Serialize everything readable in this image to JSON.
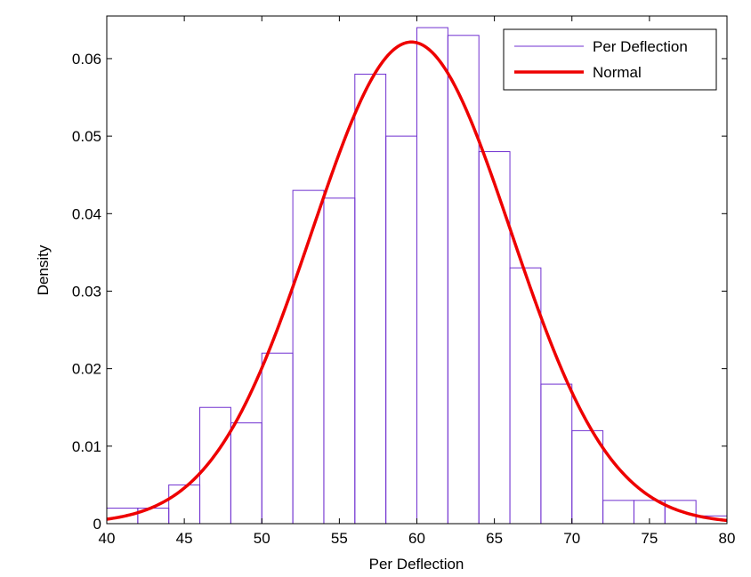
{
  "chart_data": {
    "type": "bar",
    "xlabel": "Per Deflection",
    "ylabel": "Density",
    "xlim": [
      40,
      80
    ],
    "ylim": [
      0,
      0.0655
    ],
    "x_ticks": [
      40,
      45,
      50,
      55,
      60,
      65,
      70,
      75,
      80
    ],
    "y_ticks": [
      0,
      0.01,
      0.02,
      0.03,
      0.04,
      0.05,
      0.06
    ],
    "y_tick_labels": [
      "0",
      "0.01",
      "0.02",
      "0.03",
      "0.04",
      "0.05",
      "0.06"
    ],
    "grid": false,
    "legend_position": "top-right",
    "series": [
      {
        "name": "Per Deflection",
        "kind": "histogram",
        "color": "#7030d0",
        "bin_edges": [
          40,
          42,
          44,
          46,
          48,
          50,
          52,
          54,
          56,
          58,
          60,
          62,
          64,
          66,
          68,
          70,
          72,
          74,
          76,
          78,
          80
        ],
        "values": [
          0.002,
          0.002,
          0.005,
          0.015,
          0.013,
          0.022,
          0.043,
          0.042,
          0.058,
          0.05,
          0.064,
          0.063,
          0.048,
          0.033,
          0.018,
          0.012,
          0.003,
          0.003,
          0.003,
          0.001
        ]
      },
      {
        "name": "Normal",
        "kind": "line",
        "color": "#ee0000",
        "mean": 59.65,
        "std": 6.42
      }
    ]
  }
}
